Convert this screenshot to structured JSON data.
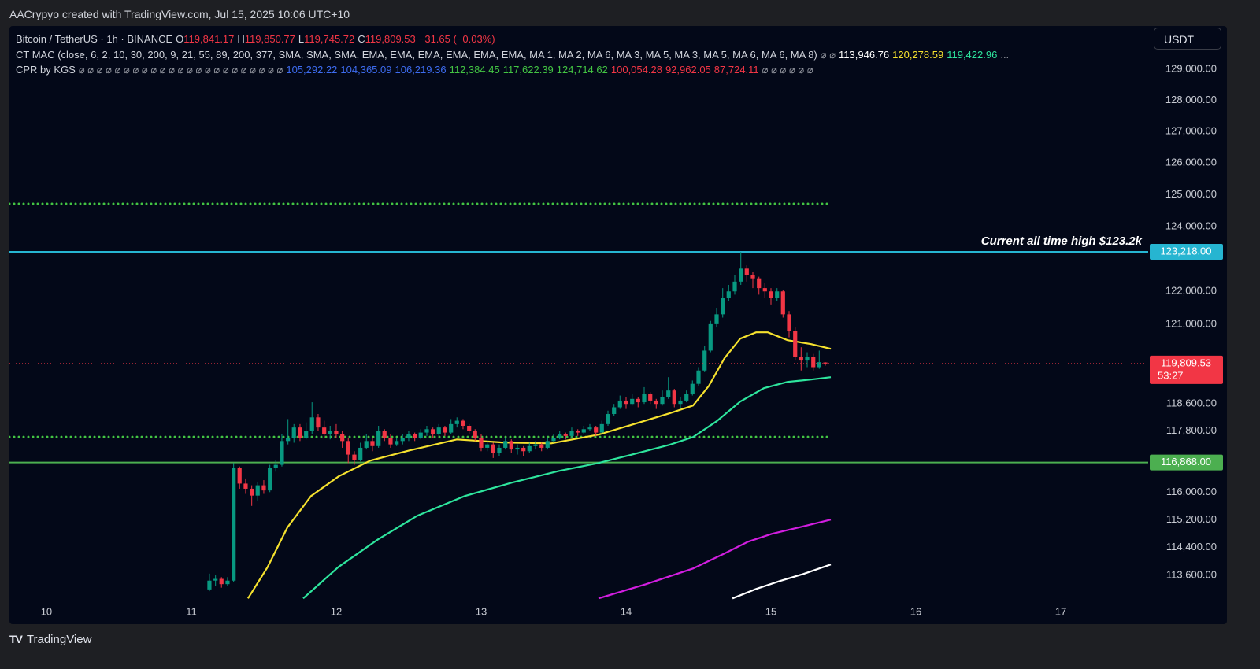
{
  "watermark": "AACrypyo created with TradingView.com, Jul 15, 2025 10:06 UTC+10",
  "currency": "USDT",
  "footer": "TradingView",
  "chart_data": {
    "type": "candlestick",
    "legend": {
      "symbol": "Bitcoin / TetherUS · 1h · BINANCE",
      "ohlc": [
        {
          "key": "O",
          "value": "119,841.17"
        },
        {
          "key": "H",
          "value": "119,850.77"
        },
        {
          "key": "L",
          "value": "119,745.72"
        },
        {
          "key": "C",
          "value": "119,809.53"
        }
      ],
      "change": "−31.65 (−0.03%)"
    },
    "indicators": [
      {
        "name": "CT MAC (close, 6, 2, 10, 30, 200, 9, 21, 55, 89, 200, 377, SMA, SMA, SMA, EMA, EMA, EMA, EMA, EMA, EMA, MA 1, MA 2, MA 6, MA 3, MA 5, MA 3, MA 5, MA 6, MA 6, MA 8)",
        "lead": "⌀ ⌀",
        "values": [
          {
            "value": 113946.76,
            "label": "113,946.76",
            "color": "#ffffff"
          },
          {
            "value": 120278.59,
            "label": "120,278.59",
            "color": "#f5e12e"
          },
          {
            "value": 119422.96,
            "label": "119,422.96",
            "color": "#2ee59d"
          }
        ],
        "trail": "..."
      },
      {
        "name": "CPR by KGS",
        "lead": "⌀ ⌀ ⌀ ⌀ ⌀ ⌀ ⌀ ⌀ ⌀ ⌀ ⌀ ⌀ ⌀ ⌀ ⌀ ⌀ ⌀ ⌀ ⌀ ⌀ ⌀ ⌀ ⌀",
        "values": [
          {
            "value": 105292.22,
            "label": "105,292.22",
            "color": "#3d6cf0"
          },
          {
            "value": 104365.09,
            "label": "104,365.09",
            "color": "#3d6cf0"
          },
          {
            "value": 106219.36,
            "label": "106,219.36",
            "color": "#3d6cf0"
          },
          {
            "value": 112384.45,
            "label": "112,384.45",
            "color": "#43c443"
          },
          {
            "value": 117622.39,
            "label": "117,622.39",
            "color": "#43c443"
          },
          {
            "value": 124714.62,
            "label": "124,714.62",
            "color": "#43c443"
          },
          {
            "value": 100054.28,
            "label": "100,054.28",
            "color": "#f23645"
          },
          {
            "value": 92962.05,
            "label": "92,962.05",
            "color": "#f23645"
          },
          {
            "value": 87724.11,
            "label": "87,724.11",
            "color": "#f23645"
          }
        ],
        "trail": "⌀ ⌀ ⌀ ⌀ ⌀ ⌀",
        "plot": "levels"
      }
    ],
    "log_scale": true,
    "xlim": [
      9.745,
      17.603
    ],
    "ylim": [
      112840,
      130490
    ],
    "xticks": [
      10,
      11,
      12,
      13,
      14,
      15,
      16,
      17
    ],
    "yticks": [
      {
        "value": 129000,
        "label": "129,000.00"
      },
      {
        "value": 128000,
        "label": "128,000.00"
      },
      {
        "value": 127000,
        "label": "127,000.00"
      },
      {
        "value": 126000,
        "label": "126,000.00"
      },
      {
        "value": 125000,
        "label": "125,000.00"
      },
      {
        "value": 124000,
        "label": "124,000.00"
      },
      {
        "value": 122000,
        "label": "122,000.00"
      },
      {
        "value": 121000,
        "label": "121,000.00"
      },
      {
        "value": 118600,
        "label": "118,600.00"
      },
      {
        "value": 117800,
        "label": "117,800.00"
      },
      {
        "value": 116000,
        "label": "116,000.00"
      },
      {
        "value": 115200,
        "label": "115,200.00"
      },
      {
        "value": 114400,
        "label": "114,400.00"
      },
      {
        "value": 113600,
        "label": "113,600.00"
      }
    ],
    "up_color": "#089981",
    "down_color": "#f23645",
    "candles": [
      [
        11.125,
        113200,
        113650,
        113150,
        113450
      ],
      [
        11.167,
        113450,
        113600,
        113300,
        113500
      ],
      [
        11.208,
        113500,
        113550,
        113250,
        113350
      ],
      [
        11.25,
        113350,
        113550,
        113300,
        113450
      ],
      [
        11.292,
        113450,
        116850,
        113400,
        116700
      ],
      [
        11.333,
        116700,
        116750,
        116100,
        116250
      ],
      [
        11.375,
        116250,
        116400,
        115950,
        116100
      ],
      [
        11.417,
        116100,
        116200,
        115600,
        115900
      ],
      [
        11.458,
        115900,
        116300,
        115750,
        116200
      ],
      [
        11.5,
        116200,
        116350,
        115950,
        116050
      ],
      [
        11.542,
        116050,
        116800,
        116000,
        116700
      ],
      [
        11.583,
        116700,
        116950,
        116600,
        116800
      ],
      [
        11.625,
        116800,
        117700,
        116750,
        117500
      ],
      [
        11.667,
        117500,
        118150,
        117400,
        117600
      ],
      [
        11.708,
        117600,
        118000,
        117450,
        117900
      ],
      [
        11.75,
        117900,
        118000,
        117500,
        117600
      ],
      [
        11.792,
        117600,
        118050,
        117550,
        117800
      ],
      [
        11.833,
        117800,
        118650,
        117700,
        118200
      ],
      [
        11.875,
        118200,
        118300,
        117800,
        117900
      ],
      [
        11.917,
        117900,
        118100,
        117600,
        117700
      ],
      [
        11.958,
        117700,
        117950,
        117550,
        117800
      ],
      [
        12,
        117800,
        118000,
        117600,
        117700
      ],
      [
        12.042,
        117700,
        117800,
        117300,
        117500
      ],
      [
        12.083,
        117500,
        117600,
        116850,
        117100
      ],
      [
        12.125,
        117100,
        117200,
        116800,
        116950
      ],
      [
        12.167,
        116950,
        117450,
        116900,
        117300
      ],
      [
        12.208,
        117300,
        117700,
        117250,
        117500
      ],
      [
        12.25,
        117500,
        117600,
        117200,
        117350
      ],
      [
        12.292,
        117350,
        117950,
        117300,
        117800
      ],
      [
        12.333,
        117800,
        117850,
        117500,
        117600
      ],
      [
        12.375,
        117600,
        117700,
        117300,
        117400
      ],
      [
        12.417,
        117400,
        117600,
        117350,
        117500
      ],
      [
        12.458,
        117500,
        117700,
        117400,
        117600
      ],
      [
        12.5,
        117600,
        117800,
        117500,
        117700
      ],
      [
        12.542,
        117700,
        117750,
        117500,
        117600
      ],
      [
        12.583,
        117600,
        117850,
        117550,
        117750
      ],
      [
        12.625,
        117750,
        117950,
        117650,
        117850
      ],
      [
        12.667,
        117850,
        117900,
        117600,
        117700
      ],
      [
        12.708,
        117700,
        118000,
        117650,
        117900
      ],
      [
        12.75,
        117900,
        117950,
        117650,
        117750
      ],
      [
        12.792,
        117750,
        118150,
        117700,
        118000
      ],
      [
        12.833,
        118000,
        118200,
        117900,
        118100
      ],
      [
        12.875,
        118100,
        118150,
        117850,
        117950
      ],
      [
        12.917,
        117950,
        118000,
        117700,
        117800
      ],
      [
        12.958,
        117800,
        117850,
        117500,
        117600
      ],
      [
        13,
        117600,
        117700,
        117200,
        117300
      ],
      [
        13.042,
        117300,
        117500,
        117200,
        117400
      ],
      [
        13.083,
        117400,
        117450,
        117000,
        117150
      ],
      [
        13.125,
        117150,
        117400,
        117050,
        117300
      ],
      [
        13.167,
        117300,
        117600,
        117250,
        117500
      ],
      [
        13.208,
        117500,
        117550,
        117150,
        117250
      ],
      [
        13.25,
        117250,
        117400,
        117100,
        117300
      ],
      [
        13.292,
        117300,
        117350,
        117050,
        117200
      ],
      [
        13.333,
        117200,
        117450,
        117150,
        117350
      ],
      [
        13.375,
        117350,
        117500,
        117250,
        117400
      ],
      [
        13.417,
        117400,
        117450,
        117200,
        117300
      ],
      [
        13.458,
        117300,
        117600,
        117250,
        117500
      ],
      [
        13.5,
        117500,
        117700,
        117450,
        117600
      ],
      [
        13.542,
        117600,
        117800,
        117550,
        117700
      ],
      [
        13.583,
        117700,
        117750,
        117550,
        117650
      ],
      [
        13.625,
        117650,
        117900,
        117600,
        117800
      ],
      [
        13.667,
        117800,
        117850,
        117650,
        117750
      ],
      [
        13.708,
        117750,
        117950,
        117700,
        117850
      ],
      [
        13.75,
        117850,
        118000,
        117800,
        117900
      ],
      [
        13.792,
        117900,
        117950,
        117650,
        117750
      ],
      [
        13.833,
        117750,
        118100,
        117700,
        118000
      ],
      [
        13.875,
        118000,
        118400,
        117950,
        118300
      ],
      [
        13.917,
        118300,
        118600,
        118250,
        118500
      ],
      [
        13.958,
        118500,
        118850,
        118450,
        118700
      ],
      [
        14,
        118700,
        118800,
        118450,
        118600
      ],
      [
        14.042,
        118600,
        118900,
        118550,
        118750
      ],
      [
        14.083,
        118750,
        118800,
        118500,
        118650
      ],
      [
        14.125,
        118650,
        119100,
        118600,
        118900
      ],
      [
        14.167,
        118900,
        118950,
        118600,
        118700
      ],
      [
        14.208,
        118700,
        118750,
        118450,
        118600
      ],
      [
        14.25,
        118600,
        119000,
        118550,
        118800
      ],
      [
        14.292,
        118800,
        119400,
        118750,
        119000
      ],
      [
        14.333,
        119000,
        119050,
        118500,
        118600
      ],
      [
        14.375,
        118600,
        118800,
        118450,
        118700
      ],
      [
        14.417,
        118700,
        119000,
        118650,
        118900
      ],
      [
        14.458,
        118900,
        119300,
        118850,
        119200
      ],
      [
        14.5,
        119200,
        119700,
        119150,
        119600
      ],
      [
        14.542,
        119600,
        120350,
        119550,
        120200
      ],
      [
        14.583,
        120200,
        121100,
        120150,
        121000
      ],
      [
        14.625,
        121000,
        121500,
        120900,
        121300
      ],
      [
        14.667,
        121300,
        122100,
        121200,
        121800
      ],
      [
        14.708,
        121800,
        122200,
        121700,
        122000
      ],
      [
        14.75,
        122000,
        122500,
        121900,
        122300
      ],
      [
        14.792,
        122300,
        123218,
        122200,
        122700
      ],
      [
        14.833,
        122700,
        122800,
        122300,
        122500
      ],
      [
        14.875,
        122500,
        122600,
        122100,
        122400
      ],
      [
        14.917,
        122400,
        122450,
        121900,
        122100
      ],
      [
        14.958,
        122100,
        122250,
        121800,
        122000
      ],
      [
        15,
        122000,
        122100,
        121600,
        121800
      ],
      [
        15.042,
        121800,
        122100,
        121700,
        122000
      ],
      [
        15.083,
        122000,
        122050,
        121200,
        121300
      ],
      [
        15.125,
        121300,
        121400,
        120600,
        120800
      ],
      [
        15.167,
        120800,
        120900,
        119900,
        120000
      ],
      [
        15.208,
        120000,
        120300,
        119600,
        119900
      ],
      [
        15.25,
        119900,
        120150,
        119700,
        120000
      ],
      [
        15.292,
        120000,
        120100,
        119600,
        119700
      ],
      [
        15.333,
        119700,
        120200,
        119650,
        119850
      ],
      [
        15.375,
        119841.17,
        119850.77,
        119745.72,
        119809.53
      ]
    ],
    "series": [
      {
        "color": "#f5e12e",
        "x": [
          11.391,
          11.527,
          11.663,
          11.826,
          12.016,
          12.234,
          12.505,
          12.832,
          13.158,
          13.484,
          13.81,
          14.027,
          14.299,
          14.462,
          14.571,
          14.679,
          14.788,
          14.897,
          14.978,
          15.114,
          15.277,
          15.413
        ],
        "values": [
          112945,
          113842,
          114974,
          115886,
          116460,
          116922,
          117222,
          117547,
          117455,
          117432,
          117688,
          117967,
          118318,
          118552,
          119139,
          119967,
          120563,
          120754,
          120754,
          120516,
          120396,
          120254
        ]
      },
      {
        "color": "#2ee59d",
        "x": [
          11.772,
          12.016,
          12.288,
          12.56,
          12.886,
          13.212,
          13.538,
          13.81,
          14.027,
          14.299,
          14.462,
          14.625,
          14.788,
          14.951,
          15.114,
          15.277,
          15.413
        ],
        "values": [
          112945,
          113842,
          114632,
          115316,
          115886,
          116277,
          116622,
          116853,
          117085,
          117386,
          117618,
          118085,
          118670,
          119070,
          119258,
          119329,
          119400
        ]
      },
      {
        "color": "#d21ee0",
        "x": [
          13.81,
          14.136,
          14.462,
          14.679,
          14.842,
          15.005,
          15.168,
          15.413
        ],
        "values": [
          112945,
          113348,
          113797,
          114226,
          114565,
          114792,
          114952,
          115203
        ]
      },
      {
        "color": "#ffffff",
        "x": [
          14.734,
          14.897,
          15.06,
          15.223,
          15.413
        ],
        "values": [
          112945,
          113213,
          113438,
          113640,
          113911
        ]
      }
    ],
    "hlines": [
      {
        "value": 123218,
        "label": "123,218.00",
        "color": "#26b5d1",
        "annotation": "Current all time high $123.2k"
      },
      {
        "value": 116868,
        "label": "116,868.00",
        "color": "#4caf50"
      }
    ],
    "last_price": {
      "value": 119809.53,
      "label": "119,809.53",
      "countdown": "53:27",
      "color": "#f23645"
    }
  }
}
